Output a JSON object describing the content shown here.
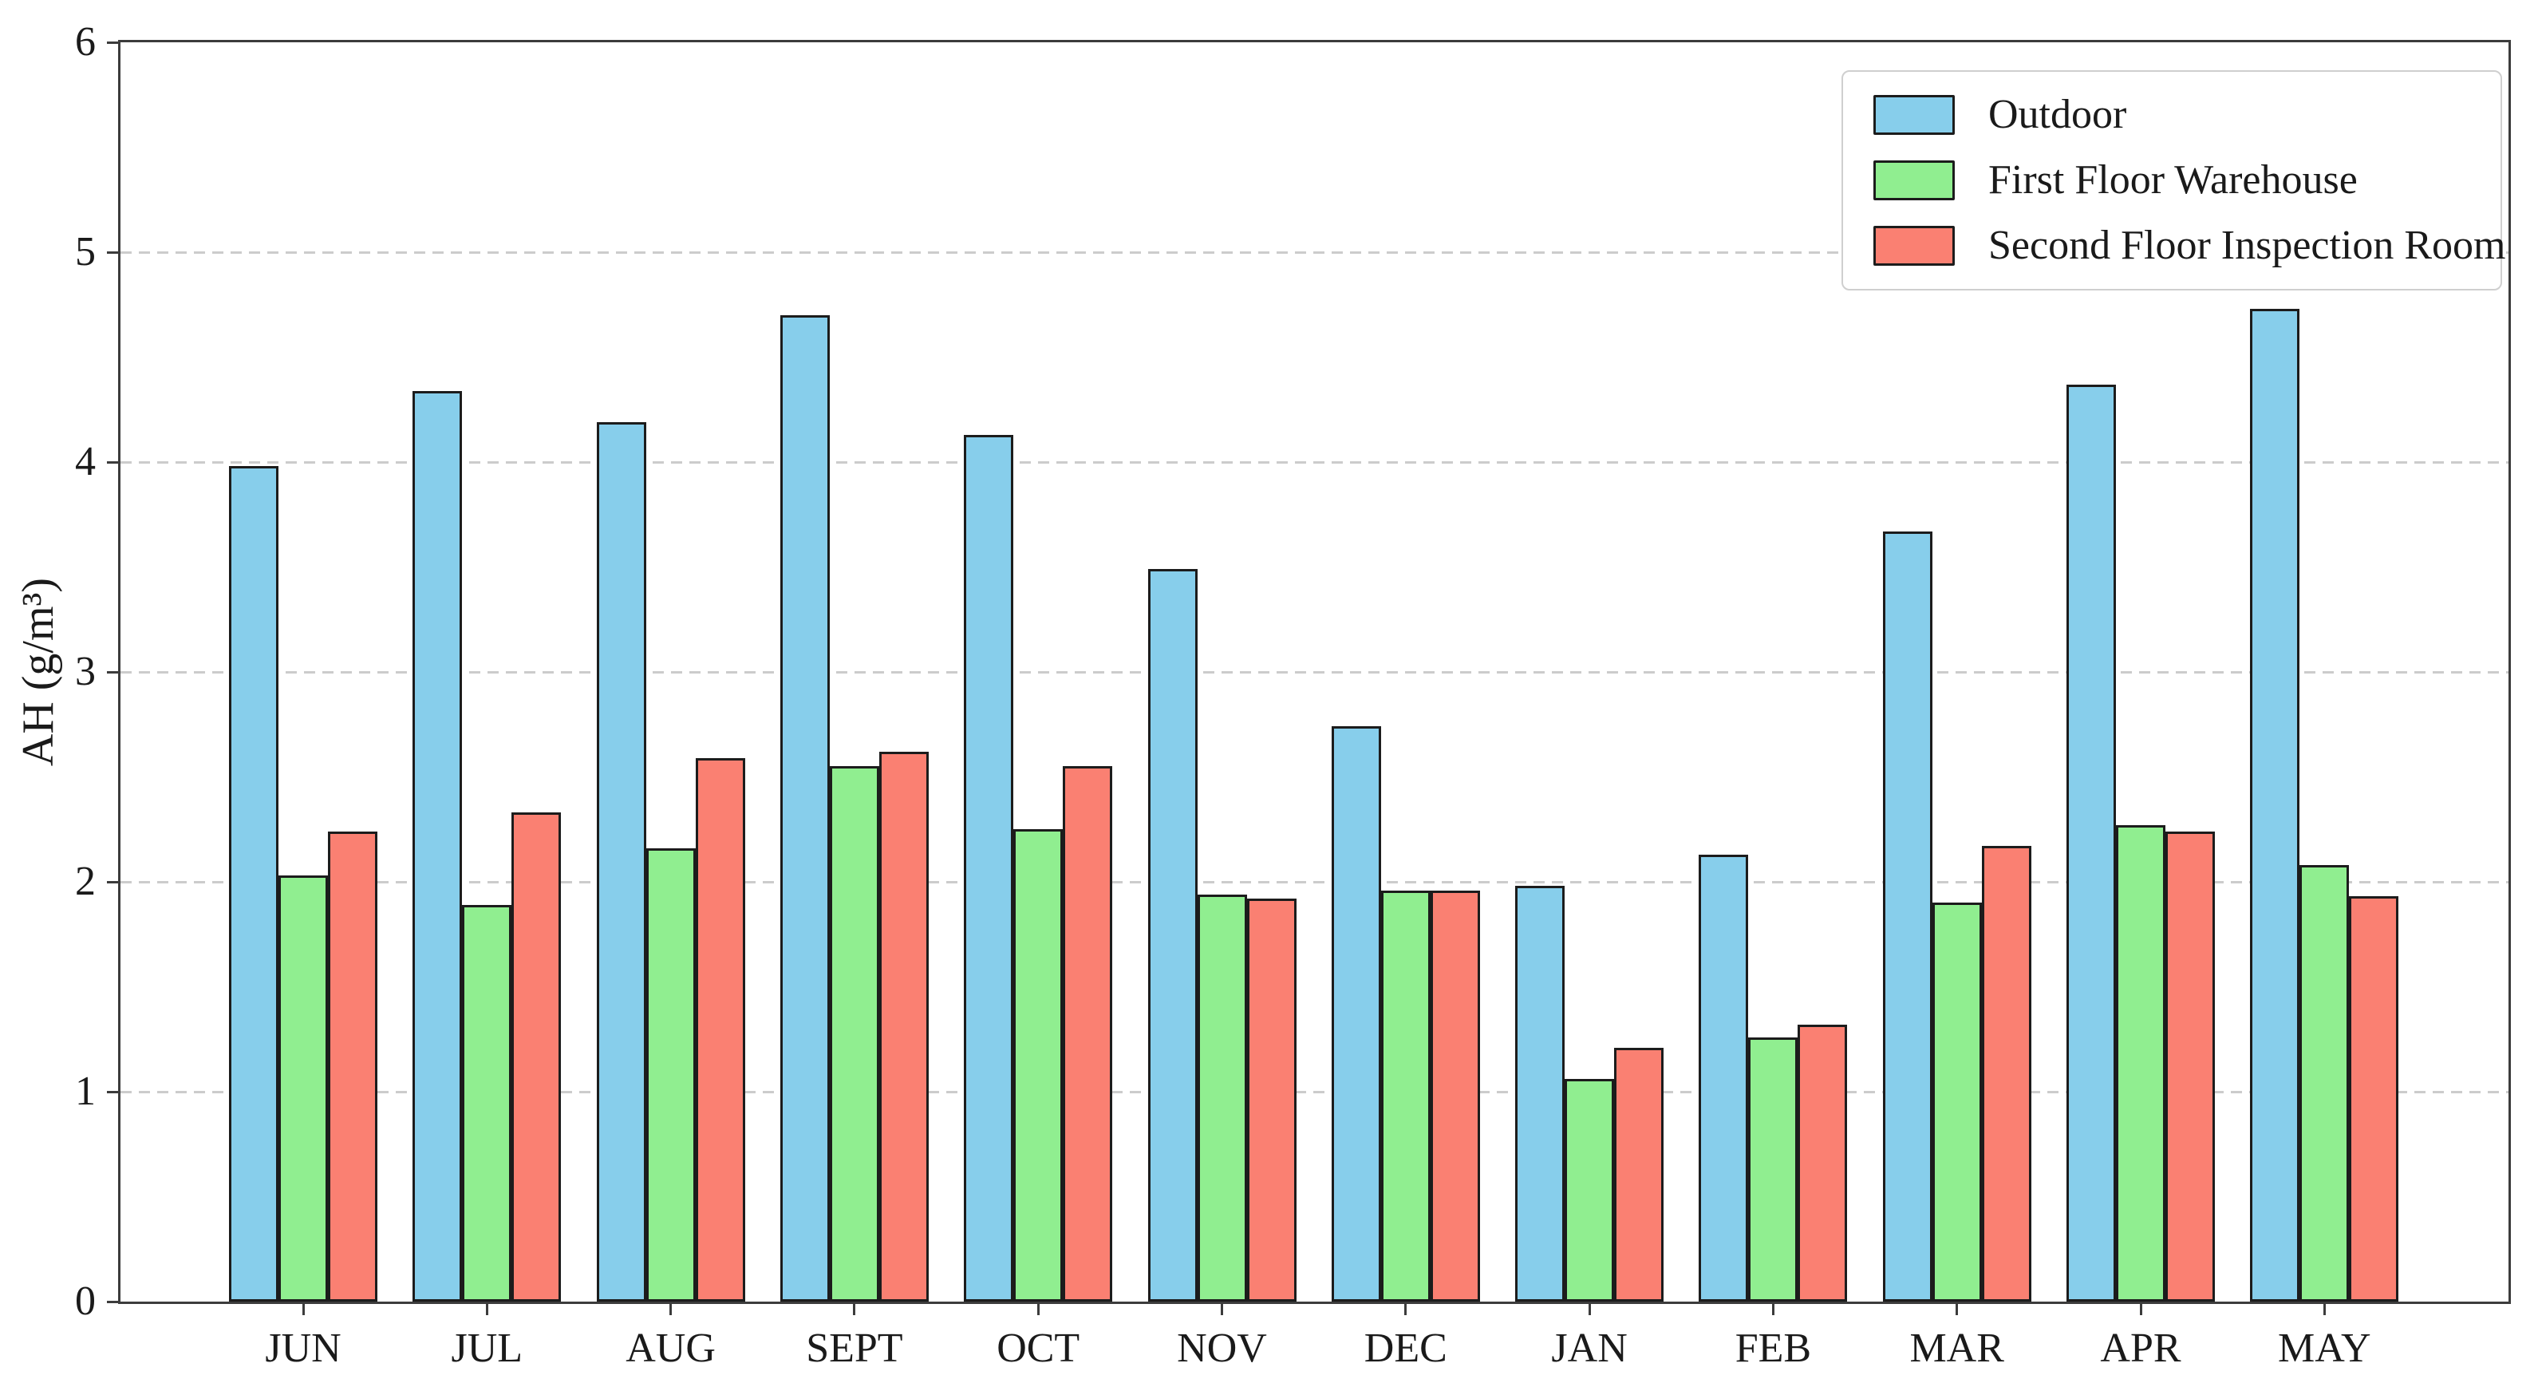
{
  "chart_data": {
    "type": "bar",
    "ylabel": "AH (g/m³)",
    "categories": [
      "JUN",
      "JUL",
      "AUG",
      "SEPT",
      "OCT",
      "NOV",
      "DEC",
      "JAN",
      "FEB",
      "MAR",
      "APR",
      "MAY"
    ],
    "series": [
      {
        "name": "Outdoor",
        "color": "#87CEEB",
        "values": [
          3.98,
          4.34,
          4.19,
          4.7,
          4.13,
          3.49,
          2.74,
          1.98,
          2.13,
          3.67,
          4.37,
          4.73
        ]
      },
      {
        "name": "First Floor Warehouse",
        "color": "#90EE90",
        "values": [
          2.03,
          1.89,
          2.16,
          2.55,
          2.25,
          1.94,
          1.96,
          1.06,
          1.26,
          1.9,
          2.27,
          2.08
        ]
      },
      {
        "name": "Second Floor Inspection Room",
        "color": "#FA8072",
        "values": [
          2.24,
          2.33,
          2.59,
          2.62,
          2.55,
          1.92,
          1.96,
          1.21,
          1.32,
          2.17,
          2.24,
          1.93
        ]
      }
    ],
    "ylim": [
      0,
      6
    ],
    "yticks": [
      0,
      1,
      2,
      3,
      4,
      5,
      6
    ],
    "grid": "horizontal-dashed",
    "legend_position": "top-right",
    "bar_edge_color": "#1c1c1c",
    "axis_color": "#3c3c3c",
    "grid_color": "#cccccc",
    "text_color": "#1a1a1a",
    "legend_border_color": "#cfcfcf",
    "background_color": "#ffffff"
  }
}
